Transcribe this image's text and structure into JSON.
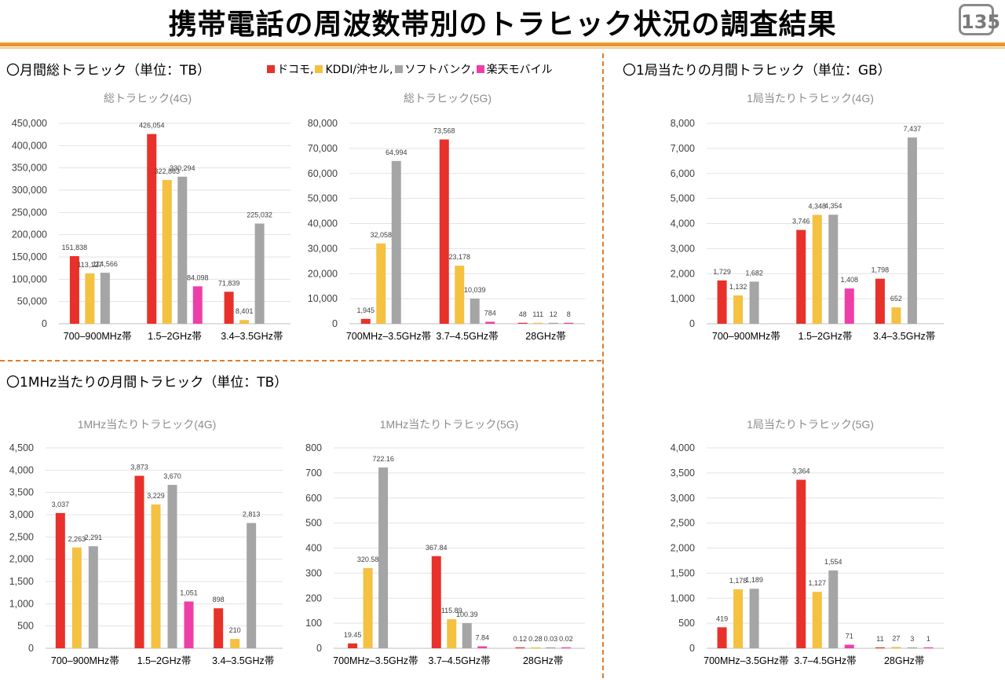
{
  "page": {
    "title": "携帯電話の周波数帯別のトラヒック状況の調査結果",
    "page_number": "135",
    "sections": {
      "monthly_total": "〇月間総トラヒック（単位：TB）",
      "per_station": "〇1局当たりの月間トラヒック（単位：GB）",
      "per_mhz": "〇1MHz当たりの月間トラヒック（単位：TB）"
    },
    "legend": [
      {
        "label": "ドコモ,",
        "color": "#e8312a"
      },
      {
        "label": "KDDI/沖セル,",
        "color": "#f4c141"
      },
      {
        "label": "ソフトバンク,",
        "color": "#a5a5a5"
      },
      {
        "label": "楽天モバイル",
        "color": "#ee3fa8"
      }
    ]
  },
  "chart_data": [
    {
      "id": "total4g",
      "type": "bar",
      "title": "総トラヒック(4G)",
      "categories": [
        "700–900MHz帯",
        "1.5–2GHz帯",
        "3.4–3.5GHz帯"
      ],
      "ylim": [
        0,
        450000
      ],
      "yticks": [
        [
          "0",
          0
        ],
        [
          "50,000",
          50000
        ],
        [
          "100,000",
          100000
        ],
        [
          "150,000",
          150000
        ],
        [
          "200,000",
          200000
        ],
        [
          "250,000",
          250000
        ],
        [
          "300,000",
          300000
        ],
        [
          "350,000",
          350000
        ],
        [
          "400,000",
          400000
        ],
        [
          "450,000",
          450000
        ]
      ],
      "series": [
        {
          "color": "#e8312a",
          "values": [
            151838,
            426054,
            71839
          ],
          "labels": [
            "151,838",
            "426,054",
            "71,839"
          ]
        },
        {
          "color": "#f4c141",
          "values": [
            113127,
            322863,
            8401
          ],
          "labels": [
            "113,127",
            "322,863",
            "8,401"
          ]
        },
        {
          "color": "#a5a5a5",
          "values": [
            114566,
            330294,
            225032
          ],
          "labels": [
            "114,566",
            "330,294",
            "225,032"
          ]
        },
        {
          "color": "#ee3fa8",
          "values": [
            null,
            84098,
            null
          ],
          "labels": [
            "",
            "84,098",
            ""
          ]
        }
      ]
    },
    {
      "id": "total5g",
      "type": "bar",
      "title": "総トラヒック(5G)",
      "categories": [
        "700MHz–3.5GHz帯",
        "3.7–4.5GHz帯",
        "28GHz帯"
      ],
      "ylim": [
        0,
        80000
      ],
      "yticks": [
        [
          "0",
          0
        ],
        [
          "10,000",
          10000
        ],
        [
          "20,000",
          20000
        ],
        [
          "30,000",
          30000
        ],
        [
          "40,000",
          40000
        ],
        [
          "50,000",
          50000
        ],
        [
          "60,000",
          60000
        ],
        [
          "70,000",
          70000
        ],
        [
          "80,000",
          80000
        ]
      ],
      "series": [
        {
          "color": "#e8312a",
          "values": [
            1945,
            73568,
            48
          ],
          "labels": [
            "1,945",
            "73,568",
            "48"
          ]
        },
        {
          "color": "#f4c141",
          "values": [
            32058,
            23178,
            111
          ],
          "labels": [
            "32,058",
            "23,178",
            "111"
          ]
        },
        {
          "color": "#a5a5a5",
          "values": [
            64994,
            10039,
            12
          ],
          "labels": [
            "64,994",
            "10,039",
            "12"
          ]
        },
        {
          "color": "#ee3fa8",
          "values": [
            null,
            784,
            8
          ],
          "labels": [
            "",
            "784",
            "8"
          ]
        }
      ]
    },
    {
      "id": "station4g",
      "type": "bar",
      "title": "1局当たりトラヒック(4G)",
      "categories": [
        "700–900MHz帯",
        "1.5–2GHz帯",
        "3.4–3.5GHz帯"
      ],
      "ylim": [
        0,
        8000
      ],
      "yticks": [
        [
          "0",
          0
        ],
        [
          "1,000",
          1000
        ],
        [
          "2,000",
          2000
        ],
        [
          "3,000",
          3000
        ],
        [
          "4,000",
          4000
        ],
        [
          "5,000",
          5000
        ],
        [
          "6,000",
          6000
        ],
        [
          "7,000",
          7000
        ],
        [
          "8,000",
          8000
        ]
      ],
      "series": [
        {
          "color": "#e8312a",
          "values": [
            1729,
            3746,
            1798
          ],
          "labels": [
            "1,729",
            "3,746",
            "1,798"
          ]
        },
        {
          "color": "#f4c141",
          "values": [
            1132,
            4348,
            652
          ],
          "labels": [
            "1,132",
            "4,348",
            "652"
          ]
        },
        {
          "color": "#a5a5a5",
          "values": [
            1682,
            4354,
            7437
          ],
          "labels": [
            "1,682",
            "4,354",
            "7,437"
          ]
        },
        {
          "color": "#ee3fa8",
          "values": [
            null,
            1408,
            null
          ],
          "labels": [
            "",
            "1,408",
            ""
          ]
        }
      ]
    },
    {
      "id": "mhz4g",
      "type": "bar",
      "title": "1MHz当たりトラヒック(4G)",
      "categories": [
        "700–900MHz帯",
        "1.5–2GHz帯",
        "3.4–3.5GHz帯"
      ],
      "ylim": [
        0,
        4500
      ],
      "yticks": [
        [
          "0",
          0
        ],
        [
          "500",
          500
        ],
        [
          "1,000",
          1000
        ],
        [
          "1,500",
          1500
        ],
        [
          "2,000",
          2000
        ],
        [
          "2,500",
          2500
        ],
        [
          "3,000",
          3000
        ],
        [
          "3,500",
          3500
        ],
        [
          "4,000",
          4000
        ],
        [
          "4,500",
          4500
        ]
      ],
      "series": [
        {
          "color": "#e8312a",
          "values": [
            3037,
            3873,
            898
          ],
          "labels": [
            "3,037",
            "3,873",
            "898"
          ]
        },
        {
          "color": "#f4c141",
          "values": [
            2263,
            3229,
            210
          ],
          "labels": [
            "2,263",
            "3,229",
            "210"
          ]
        },
        {
          "color": "#a5a5a5",
          "values": [
            2291,
            3670,
            2813
          ],
          "labels": [
            "2,291",
            "3,670",
            "2,813"
          ]
        },
        {
          "color": "#ee3fa8",
          "values": [
            null,
            1051,
            null
          ],
          "labels": [
            "",
            "1,051",
            ""
          ]
        }
      ]
    },
    {
      "id": "mhz5g",
      "type": "bar",
      "title": "1MHz当たりトラヒック(5G)",
      "categories": [
        "700MHz–3.5GHz帯",
        "3.7–4.5GHz帯",
        "28GHz帯"
      ],
      "ylim": [
        0,
        800
      ],
      "yticks": [
        [
          "0",
          0
        ],
        [
          "100",
          100
        ],
        [
          "200",
          200
        ],
        [
          "300",
          300
        ],
        [
          "400",
          400
        ],
        [
          "500",
          500
        ],
        [
          "600",
          600
        ],
        [
          "700",
          700
        ],
        [
          "800",
          800
        ]
      ],
      "series": [
        {
          "color": "#e8312a",
          "values": [
            19.45,
            367.84,
            0.12
          ],
          "labels": [
            "19.45",
            "367.84",
            "0.12"
          ]
        },
        {
          "color": "#f4c141",
          "values": [
            320.58,
            115.89,
            0.28
          ],
          "labels": [
            "320.58",
            "115.89",
            "0.28"
          ]
        },
        {
          "color": "#a5a5a5",
          "values": [
            722.16,
            100.39,
            0.03
          ],
          "labels": [
            "722.16",
            "100.39",
            "0.03"
          ]
        },
        {
          "color": "#ee3fa8",
          "values": [
            null,
            7.84,
            0.02
          ],
          "labels": [
            "",
            "7.84",
            "0.02"
          ]
        }
      ]
    },
    {
      "id": "station5g",
      "type": "bar",
      "title": "1局当たりトラヒック(5G)",
      "categories": [
        "700MHz–3.5GHz帯",
        "3.7–4.5GHz帯",
        "28GHz帯"
      ],
      "ylim": [
        0,
        4000
      ],
      "yticks": [
        [
          "0",
          0
        ],
        [
          "500",
          500
        ],
        [
          "1,000",
          1000
        ],
        [
          "1,500",
          1500
        ],
        [
          "2,000",
          2000
        ],
        [
          "2,500",
          2500
        ],
        [
          "3,000",
          3000
        ],
        [
          "3,500",
          3500
        ],
        [
          "4,000",
          4000
        ]
      ],
      "series": [
        {
          "color": "#e8312a",
          "values": [
            419,
            3364,
            11
          ],
          "labels": [
            "419",
            "3,364",
            "11"
          ]
        },
        {
          "color": "#f4c141",
          "values": [
            1178,
            1127,
            27
          ],
          "labels": [
            "1,178",
            "1,127",
            "27"
          ]
        },
        {
          "color": "#a5a5a5",
          "values": [
            1189,
            1554,
            3
          ],
          "labels": [
            "1,189",
            "1,554",
            "3"
          ]
        },
        {
          "color": "#ee3fa8",
          "values": [
            null,
            71,
            1
          ],
          "labels": [
            "",
            "71",
            "1"
          ]
        }
      ]
    }
  ]
}
